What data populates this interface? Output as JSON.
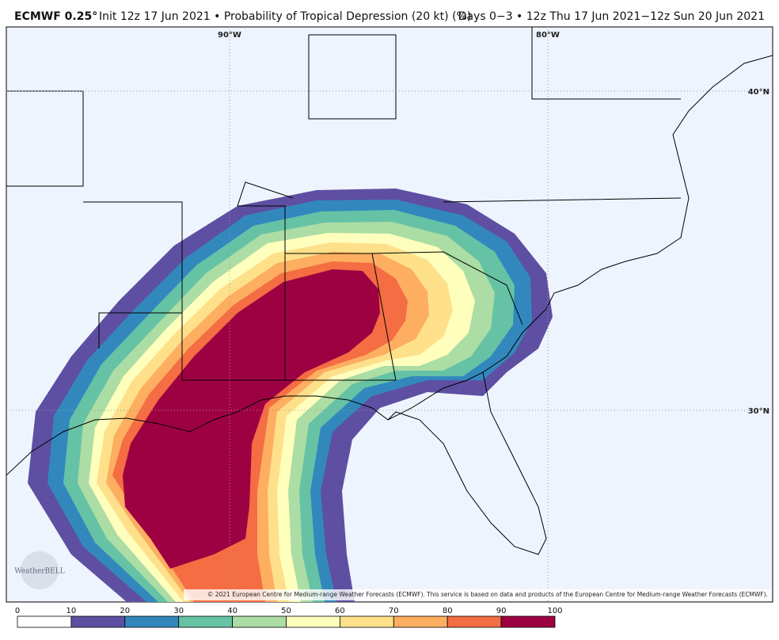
{
  "header": {
    "model": "ECMWF 0.25°",
    "description": "Init 12z 17 Jun 2021 • Probability of Tropical Depression (20 kt) (%)",
    "valid": "Days 0−3 • 12z Thu 17 Jun 2021−12z Sun 20 Jun 2021"
  },
  "map": {
    "lon_labels": [
      "90°W",
      "80°W"
    ],
    "lat_labels": [
      "40°N",
      "30°N"
    ],
    "logo": "WeatherBELL",
    "copyright": "© 2021 European Centre for Medium-range Weather Forecasts (ECMWF). This service is based on data and products of the European Centre for Medium-range Weather Forecasts (ECMWF)."
  },
  "colorbar": {
    "ticks": [
      0,
      10,
      20,
      30,
      40,
      50,
      60,
      70,
      80,
      90,
      100
    ],
    "colors": [
      "#ffffff",
      "#5e4fa2",
      "#3288bd",
      "#66c2a5",
      "#abdda4",
      "#fefebd",
      "#fee08b",
      "#fdae61",
      "#f46d43",
      "#9e0142"
    ]
  }
}
